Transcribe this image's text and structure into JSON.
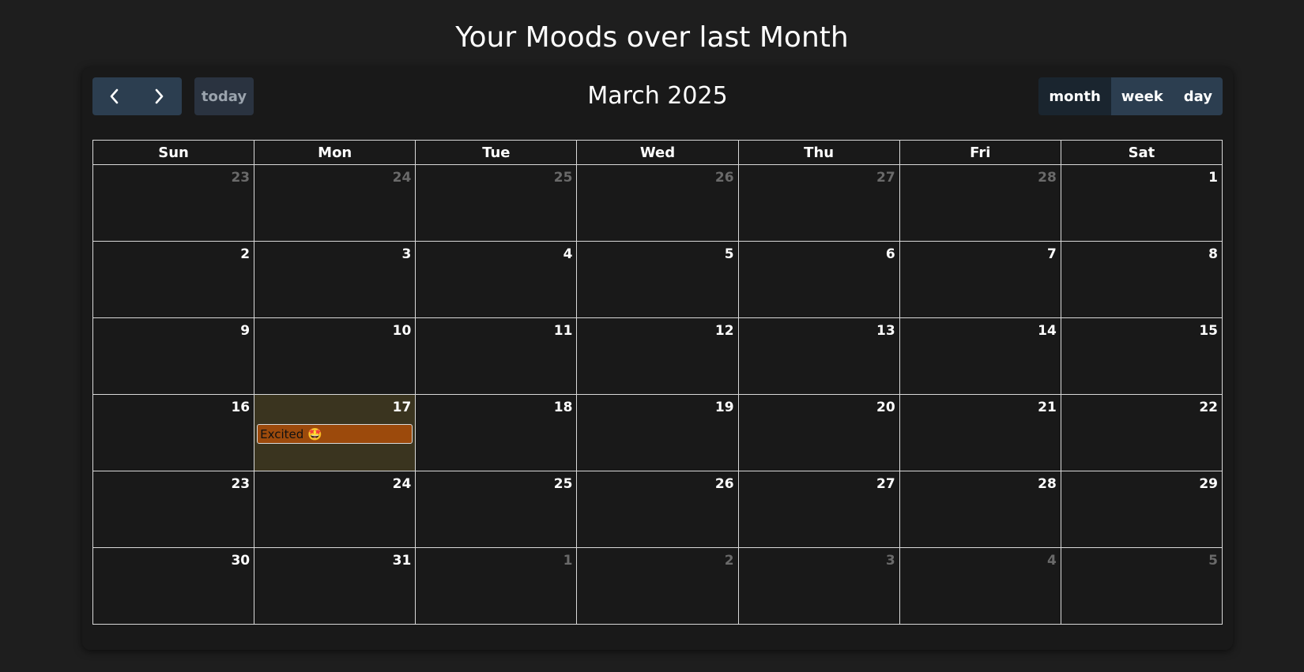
{
  "page": {
    "title": "Your Moods over last Month"
  },
  "toolbar": {
    "prev_icon": "chevron-left-icon",
    "next_icon": "chevron-right-icon",
    "today_label": "today",
    "month_title": "March 2025",
    "views": [
      {
        "label": "month",
        "active": true
      },
      {
        "label": "week",
        "active": false
      },
      {
        "label": "day",
        "active": false
      }
    ]
  },
  "calendar": {
    "weekdays": [
      "Sun",
      "Mon",
      "Tue",
      "Wed",
      "Thu",
      "Fri",
      "Sat"
    ],
    "weeks": [
      [
        {
          "d": "23",
          "other": true
        },
        {
          "d": "24",
          "other": true
        },
        {
          "d": "25",
          "other": true
        },
        {
          "d": "26",
          "other": true
        },
        {
          "d": "27",
          "other": true
        },
        {
          "d": "28",
          "other": true
        },
        {
          "d": "1",
          "other": false
        }
      ],
      [
        {
          "d": "2",
          "other": false
        },
        {
          "d": "3",
          "other": false
        },
        {
          "d": "4",
          "other": false
        },
        {
          "d": "5",
          "other": false
        },
        {
          "d": "6",
          "other": false
        },
        {
          "d": "7",
          "other": false
        },
        {
          "d": "8",
          "other": false
        }
      ],
      [
        {
          "d": "9",
          "other": false
        },
        {
          "d": "10",
          "other": false
        },
        {
          "d": "11",
          "other": false
        },
        {
          "d": "12",
          "other": false
        },
        {
          "d": "13",
          "other": false
        },
        {
          "d": "14",
          "other": false
        },
        {
          "d": "15",
          "other": false
        }
      ],
      [
        {
          "d": "16",
          "other": false
        },
        {
          "d": "17",
          "other": false,
          "today": true,
          "event": "Excited 🤩"
        },
        {
          "d": "18",
          "other": false
        },
        {
          "d": "19",
          "other": false
        },
        {
          "d": "20",
          "other": false
        },
        {
          "d": "21",
          "other": false
        },
        {
          "d": "22",
          "other": false
        }
      ],
      [
        {
          "d": "23",
          "other": false
        },
        {
          "d": "24",
          "other": false
        },
        {
          "d": "25",
          "other": false
        },
        {
          "d": "26",
          "other": false
        },
        {
          "d": "27",
          "other": false
        },
        {
          "d": "28",
          "other": false
        },
        {
          "d": "29",
          "other": false
        }
      ],
      [
        {
          "d": "30",
          "other": false
        },
        {
          "d": "31",
          "other": false
        },
        {
          "d": "1",
          "other": true
        },
        {
          "d": "2",
          "other": true
        },
        {
          "d": "3",
          "other": true
        },
        {
          "d": "4",
          "other": true
        },
        {
          "d": "5",
          "other": true
        }
      ]
    ]
  },
  "colors": {
    "background": "#1e1e1e",
    "card": "#191919",
    "button": "#2c3e50",
    "button_active": "#1a252f",
    "today_highlight": "#3a341f",
    "event": "#9c4a0c"
  }
}
